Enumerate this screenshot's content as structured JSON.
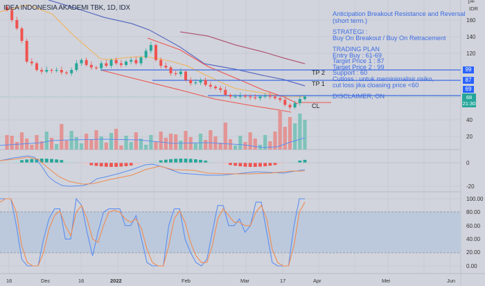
{
  "chart_header": {
    "title": "IDEA INDONESIA AKADEMI TBK, 1D, IDX"
  },
  "annotations": {
    "headline_1": "Anticipation Breakout Resistance and Reversal",
    "headline_2": "(short term.)",
    "strategy_title": "STRATEGI :",
    "strategy_text": "Buy On Breakout / Buy On Retracement",
    "plan_title": "TRADING PLAN",
    "entry": "Entry Buy : 61-69",
    "tp1": "Target Price 1 : 87",
    "tp2": "Target Price 2 : 99",
    "support": "Support : 60",
    "cutloss_1": "Cutloss : untuk meminimalisir risiko,",
    "cutloss_2": "cut loss jika cloasing price <60",
    "disclaimer": "DISCLAIMER, ON",
    "tp2_label": "TP 2",
    "tp1_label": "TP 1",
    "cl_label": "CL"
  },
  "price_axis": {
    "unit_top": "1ᴹᴹ",
    "currency": "IDR",
    "ticks": [
      "160",
      "140",
      "120"
    ],
    "tags": {
      "tp2": "99",
      "tp1": "87",
      "entry": "69",
      "current_price": "68",
      "countdown": "21:30"
    }
  },
  "volume_axis": {
    "ticks": [
      "40",
      "20"
    ]
  },
  "macd_axis": {
    "ticks": [
      "0",
      "-20"
    ]
  },
  "stoch_axis": {
    "ticks": [
      "100.00",
      "80.00",
      "60.00",
      "40.00",
      "20.00",
      "0.00"
    ]
  },
  "time_axis": {
    "ticks": [
      "16",
      "Dec",
      "16",
      "2022",
      "Feb",
      "Mar",
      "17",
      "Apr",
      "Mei",
      "Jun"
    ]
  },
  "colors": {
    "bull": "#26a69a",
    "bear": "#ef5350",
    "level_line": "#3d6be3",
    "ma_short": "#f0b35a",
    "ma_mid": "#5c6bc0",
    "ma_long": "#b05a78",
    "trendline": "#ef5350",
    "stoch_k": "#5b8def",
    "stoch_d": "#f08a50"
  },
  "chart_data": [
    {
      "type": "candlestick",
      "title": "IDEA INDONESIA AKADEMI TBK, 1D, IDX",
      "ylabel": "IDR",
      "ylim": [
        45,
        175
      ],
      "x": [
        "16 Nov",
        "Dec",
        "16 Dec",
        "2022",
        "Feb",
        "Mar",
        "17 Mar",
        "Apr",
        "Mei",
        "Jun"
      ],
      "levels": {
        "TP2": 99,
        "TP1": 87,
        "Entry": 69,
        "CL": 60,
        "Support": 60
      },
      "last_price": 68,
      "approx_closes": [
        172,
        160,
        150,
        135,
        110,
        108,
        100,
        98,
        100,
        99,
        100,
        97,
        96,
        100,
        108,
        112,
        106,
        103,
        102,
        108,
        105,
        112,
        108,
        106,
        110,
        112,
        108,
        115,
        123,
        130,
        112,
        105,
        103,
        96,
        95,
        98,
        88,
        84,
        85,
        88,
        82,
        80,
        78,
        76,
        70,
        68,
        68,
        69,
        68,
        67,
        66,
        68,
        69,
        68,
        66,
        64,
        58,
        55,
        60,
        65,
        68
      ]
    },
    {
      "type": "bar",
      "title": "Volume",
      "ylim": [
        0,
        50
      ],
      "note": "volume bars with moving average, spike near mid-March (~45)"
    },
    {
      "type": "line",
      "title": "MACD",
      "ylim": [
        -25,
        10
      ],
      "series": [
        {
          "name": "MACD",
          "min": -18
        },
        {
          "name": "Signal",
          "min": -16
        }
      ]
    },
    {
      "type": "line",
      "title": "Stochastic",
      "ylim": [
        0,
        100
      ],
      "bands": [
        20,
        80
      ],
      "series": [
        {
          "name": "%K",
          "values": [
            100,
            100,
            100,
            60,
            10,
            0,
            0,
            0,
            40,
            70,
            85,
            85,
            40,
            40,
            100,
            90,
            50,
            15,
            50,
            80,
            85,
            85,
            85,
            60,
            60,
            75,
            40,
            5,
            0,
            0,
            0,
            60,
            85,
            85,
            40,
            20,
            5,
            0,
            10,
            50,
            90,
            90,
            60,
            60,
            70,
            50,
            60,
            95,
            95,
            50,
            5,
            0,
            0,
            0,
            60,
            100,
            100
          ]
        },
        {
          "name": "%D",
          "values": [
            95,
            100,
            100,
            80,
            30,
            5,
            0,
            0,
            20,
            55,
            75,
            82,
            60,
            45,
            80,
            90,
            70,
            40,
            35,
            60,
            80,
            83,
            80,
            70,
            65,
            70,
            55,
            25,
            5,
            0,
            0,
            30,
            70,
            82,
            65,
            35,
            15,
            5,
            5,
            30,
            70,
            85,
            75,
            65,
            65,
            60,
            60,
            80,
            90,
            70,
            25,
            5,
            0,
            0,
            30,
            80,
            95
          ]
        }
      ]
    }
  ]
}
